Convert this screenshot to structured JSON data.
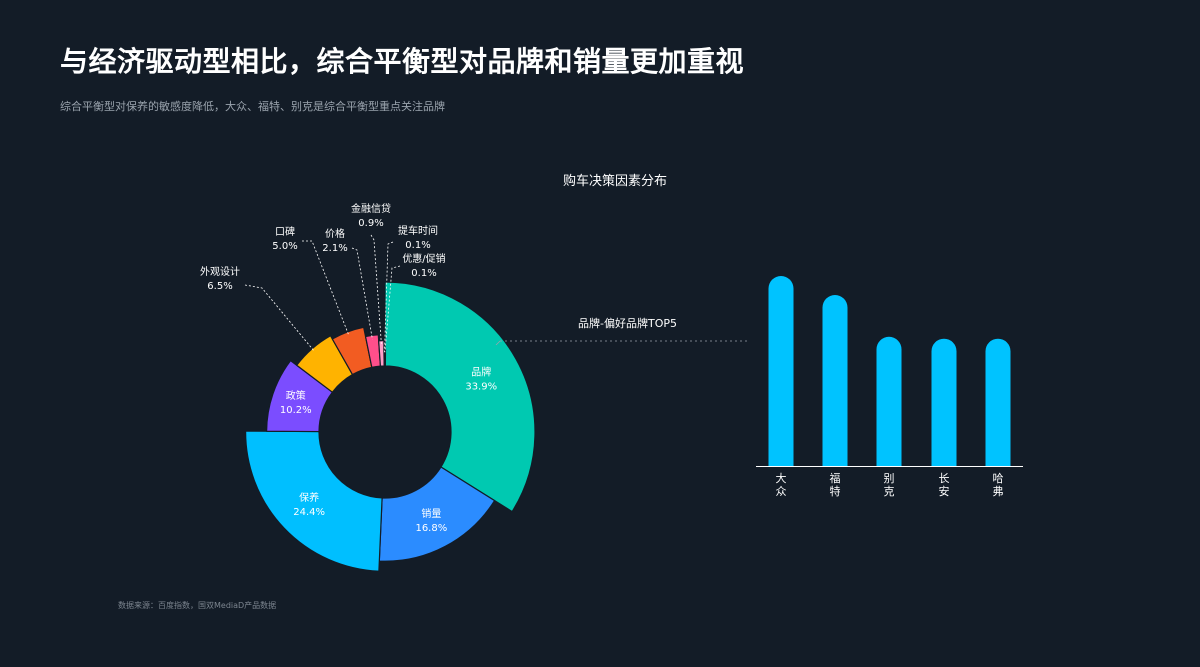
{
  "header": {
    "title": "与经济驱动型相比，综合平衡型对品牌和销量更加重视",
    "subtitle": "综合平衡型对保养的敏感度降低，大众、福特、别克是综合平衡型重点关注品牌"
  },
  "footer": {
    "source": "数据来源：百度指数，国双MediaD产品数据"
  },
  "chart_data": [
    {
      "type": "pie",
      "variant": "rose-donut",
      "title": "购车决策因素分布",
      "unit": "%",
      "slices": [
        {
          "label": "品牌",
          "value": 33.9,
          "display": "33.9%",
          "color": "#00c9b1",
          "label_pos": "inside"
        },
        {
          "label": "销量",
          "value": 16.8,
          "display": "16.8%",
          "color": "#2b8cff",
          "label_pos": "inside"
        },
        {
          "label": "保养",
          "value": 24.4,
          "display": "24.4%",
          "color": "#00bfff",
          "label_pos": "inside"
        },
        {
          "label": "政策",
          "value": 10.2,
          "display": "10.2%",
          "color": "#7b4dff",
          "label_pos": "inside"
        },
        {
          "label": "外观设计",
          "value": 6.5,
          "display": "6.5%",
          "color": "#ffb300",
          "label_pos": "outside"
        },
        {
          "label": "口碑",
          "value": 5.0,
          "display": "5.0%",
          "color": "#f25c22",
          "label_pos": "outside"
        },
        {
          "label": "价格",
          "value": 2.1,
          "display": "2.1%",
          "color": "#ff4f8b",
          "label_pos": "outside"
        },
        {
          "label": "金融信贷",
          "value": 0.9,
          "display": "0.9%",
          "color": "#ff9ec8",
          "label_pos": "outside"
        },
        {
          "label": "提车时间",
          "value": 0.1,
          "display": "0.1%",
          "color": "#ffffff",
          "label_pos": "outside"
        },
        {
          "label": "优惠/促销",
          "value": 0.1,
          "display": "0.1%",
          "color": "#ffffff",
          "label_pos": "outside"
        }
      ]
    },
    {
      "type": "bar",
      "title": "品牌-偏好品牌TOP5",
      "categories": [
        "大众",
        "福特",
        "别克",
        "长安",
        "哈弗"
      ],
      "values": [
        100,
        90,
        68,
        67,
        67
      ],
      "color": "#00c3ff"
    }
  ]
}
